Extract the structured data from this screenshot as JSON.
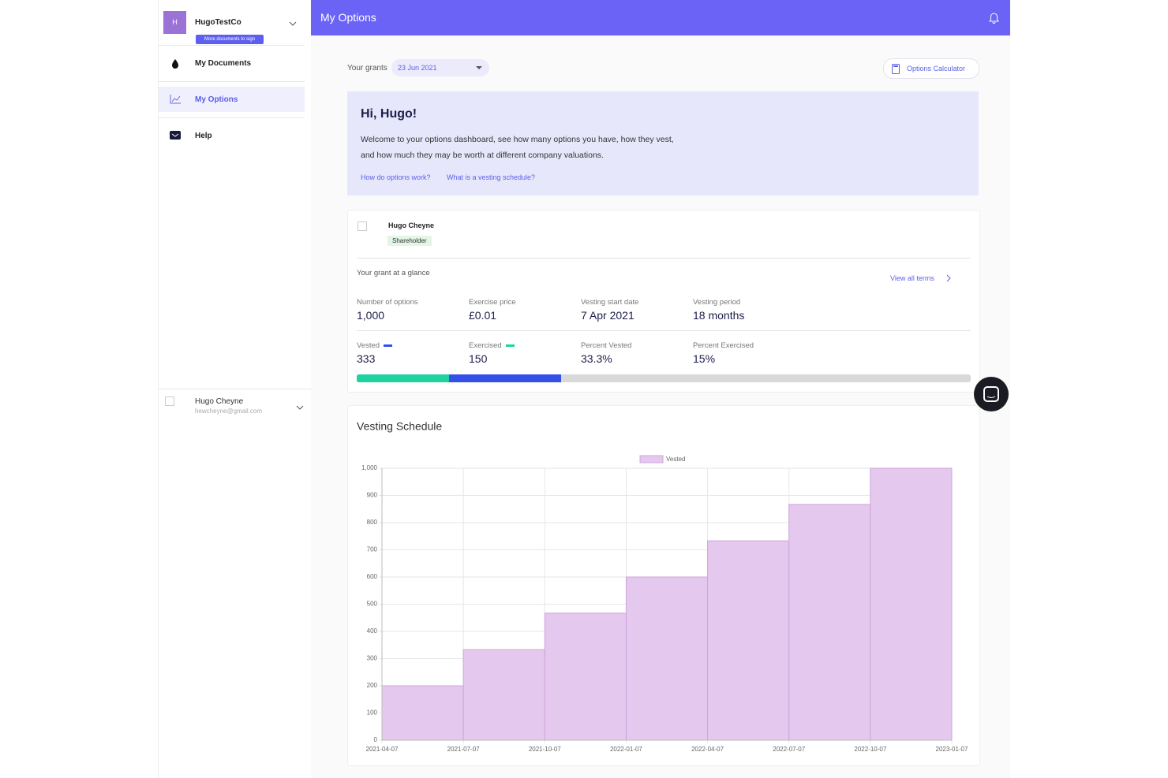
{
  "sidebar": {
    "avatar": "H",
    "company": "HugoTestCo",
    "badge": "More documents to sign",
    "nav": [
      "My Documents",
      "My Options",
      "Help"
    ],
    "user": {
      "name": "Hugo Cheyne",
      "email": "hewcheyne@gmail.com"
    }
  },
  "header": {
    "title": "My Options"
  },
  "grants": {
    "label": "Your grants",
    "selected": "23 Jun 2021"
  },
  "calculator": "Options Calculator",
  "welcome": {
    "title": "Hi, Hugo!",
    "lines": [
      "Welcome to your options dashboard, see how many options you have, how they vest,",
      "and how much they may be worth at different company valuations."
    ],
    "links": [
      "How do options work?",
      "What is a vesting schedule?"
    ]
  },
  "grant": {
    "holder": "Hugo Cheyne",
    "role": "Shareholder",
    "heading": "Your grant at a glance",
    "view_all": "View all terms",
    "terms": [
      {
        "label": "Number of options",
        "value": "1,000"
      },
      {
        "label": "Exercise price",
        "value": "£0.01"
      },
      {
        "label": "Vesting start date",
        "value": "7 Apr 2021"
      },
      {
        "label": "Vesting period",
        "value": "18 months"
      }
    ],
    "status": [
      {
        "label": "Vested",
        "value": "333",
        "color": "#3351e8"
      },
      {
        "label": "Exercised",
        "value": "150",
        "color": "#1ed3a0"
      },
      {
        "label": "Percent Vested",
        "value": "33.3%"
      },
      {
        "label": "Percent Exercised",
        "value": "15%"
      }
    ]
  },
  "chart_data": {
    "type": "step-area",
    "title": "Vesting Schedule",
    "x": [
      "2021-04-07",
      "2021-07-07",
      "2021-10-07",
      "2022-01-07",
      "2022-04-07",
      "2022-07-07",
      "2022-10-07",
      "2023-01-07"
    ],
    "series": [
      {
        "name": "Vested",
        "color": "#e5c8ee",
        "values": [
          200,
          333,
          467,
          600,
          733,
          867,
          1000,
          1000
        ]
      }
    ],
    "ylim": [
      0,
      1000
    ],
    "yticks": [
      0,
      100,
      200,
      300,
      400,
      500,
      600,
      700,
      800,
      900,
      {
        "value": 1000,
        "label": "1,000"
      }
    ],
    "grid": true,
    "legend": "top"
  }
}
